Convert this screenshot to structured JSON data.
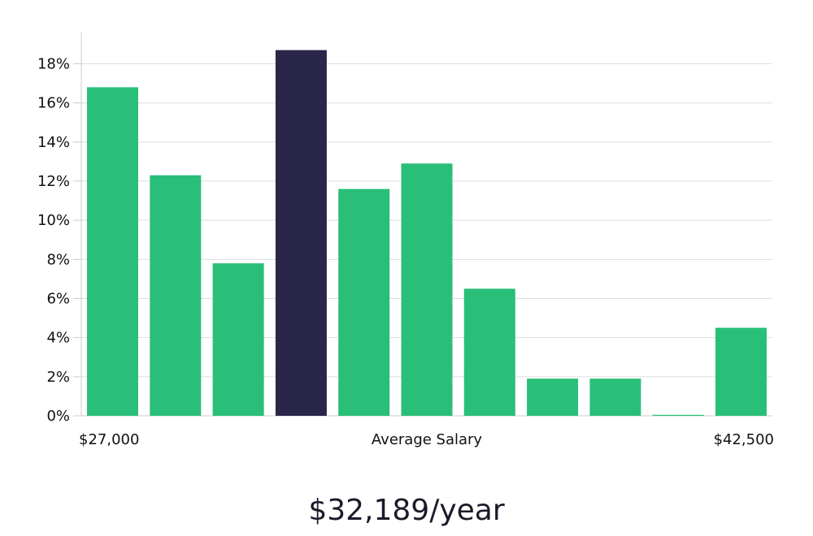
{
  "chart_data": {
    "type": "bar",
    "title": "",
    "xlabel": "Average Salary",
    "ylabel": "",
    "x_range_labels": [
      "$27,000",
      "$42,500"
    ],
    "ylim": [
      0,
      19.6
    ],
    "yticks": [
      0,
      2,
      4,
      6,
      8,
      10,
      12,
      14,
      16,
      18
    ],
    "ytick_suffix": "%",
    "grid": true,
    "highlight_index": 3,
    "values": [
      16.8,
      12.3,
      7.8,
      18.7,
      11.6,
      12.9,
      6.5,
      1.9,
      1.9,
      0.05,
      4.5
    ],
    "colors": {
      "bar": "#2abf78",
      "highlight": "#29264a",
      "grid": "#dddddd",
      "axis": "#cccccc"
    }
  },
  "summary": {
    "salary": "$32,189/year"
  }
}
